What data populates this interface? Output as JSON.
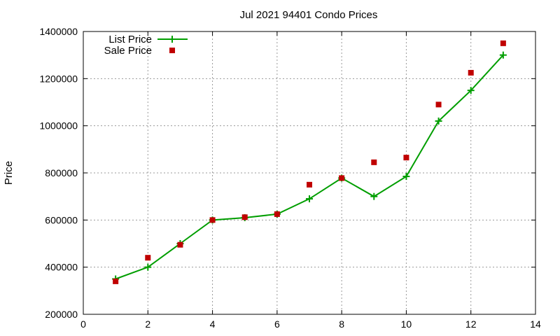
{
  "chart_data": {
    "type": "line",
    "title": "Jul 2021 94401 Condo Prices",
    "xlabel": "",
    "ylabel": "Price",
    "xlim": [
      0,
      14
    ],
    "ylim": [
      200000,
      1400000
    ],
    "x_ticks": [
      0,
      2,
      4,
      6,
      8,
      10,
      12,
      14
    ],
    "y_ticks": [
      200000,
      400000,
      600000,
      800000,
      1000000,
      1200000,
      1400000
    ],
    "x_tick_labels": [
      "0",
      "2",
      "4",
      "6",
      "8",
      "10",
      "12",
      "14"
    ],
    "y_tick_labels": [
      "200000",
      "400000",
      "600000",
      "800000",
      "1000000",
      "1200000",
      "1400000"
    ],
    "grid": true,
    "legend_position": "top-left",
    "x": [
      1,
      2,
      3,
      4,
      5,
      6,
      7,
      8,
      9,
      10,
      11,
      12,
      13
    ],
    "series": [
      {
        "name": "List Price",
        "style": "line-with-plus-markers",
        "color": "#009e00",
        "values": [
          350000,
          400000,
          500000,
          600000,
          610000,
          625000,
          690000,
          778000,
          700000,
          785000,
          1020000,
          1150000,
          1300000
        ]
      },
      {
        "name": "Sale Price",
        "style": "square-markers",
        "color": "#c00000",
        "values": [
          340000,
          440000,
          495000,
          600000,
          612000,
          625000,
          750000,
          778000,
          845000,
          865000,
          1090000,
          1225000,
          1350000
        ]
      }
    ]
  }
}
